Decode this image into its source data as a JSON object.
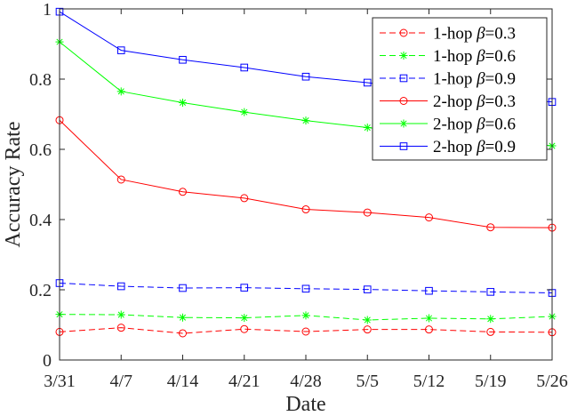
{
  "chart_data": {
    "type": "line",
    "xlabel": "Date",
    "ylabel": "Accuracy Rate",
    "categories": [
      "3/31",
      "4/7",
      "4/14",
      "4/21",
      "4/28",
      "5/5",
      "5/12",
      "5/19",
      "5/26"
    ],
    "ylim": [
      0,
      1
    ],
    "yticks": [
      "0",
      "0.2",
      "0.4",
      "0.6",
      "0.8",
      "1"
    ],
    "grid": false,
    "legend_position": "top-right",
    "series": [
      {
        "name": "1-hop β=0.3",
        "hop": "1-hop ",
        "beta": "β",
        "value_text": "=0.3",
        "color": "#ff0000",
        "style": "dashed",
        "marker": "circle",
        "values": [
          0.08,
          0.092,
          0.076,
          0.088,
          0.081,
          0.087,
          0.087,
          0.08,
          0.079
        ]
      },
      {
        "name": "1-hop β=0.6",
        "hop": "1-hop ",
        "beta": "β",
        "value_text": "=0.6",
        "color": "#00ff00",
        "style": "dashed",
        "marker": "star",
        "values": [
          0.13,
          0.129,
          0.121,
          0.12,
          0.127,
          0.114,
          0.119,
          0.117,
          0.124
        ]
      },
      {
        "name": "1-hop β=0.9",
        "hop": "1-hop ",
        "beta": "β",
        "value_text": "=0.9",
        "color": "#0000ff",
        "style": "dashed",
        "marker": "square",
        "values": [
          0.219,
          0.21,
          0.205,
          0.206,
          0.203,
          0.201,
          0.197,
          0.194,
          0.191
        ]
      },
      {
        "name": "2-hop β=0.3",
        "hop": "2-hop ",
        "beta": "β",
        "value_text": "=0.3",
        "color": "#ff0000",
        "style": "solid",
        "marker": "circle",
        "values": [
          0.683,
          0.514,
          0.479,
          0.461,
          0.429,
          0.42,
          0.406,
          0.378,
          0.377
        ]
      },
      {
        "name": "2-hop β=0.6",
        "hop": "2-hop ",
        "beta": "β",
        "value_text": "=0.6",
        "color": "#00ff00",
        "style": "solid",
        "marker": "star",
        "values": [
          0.906,
          0.765,
          0.733,
          0.706,
          0.682,
          0.662,
          0.642,
          0.628,
          0.61
        ]
      },
      {
        "name": "2-hop β=0.9",
        "hop": "2-hop ",
        "beta": "β",
        "value_text": "=0.9",
        "color": "#0000ff",
        "style": "solid",
        "marker": "square",
        "values": [
          0.992,
          0.882,
          0.855,
          0.833,
          0.807,
          0.79,
          0.768,
          0.745,
          0.735
        ]
      }
    ]
  }
}
